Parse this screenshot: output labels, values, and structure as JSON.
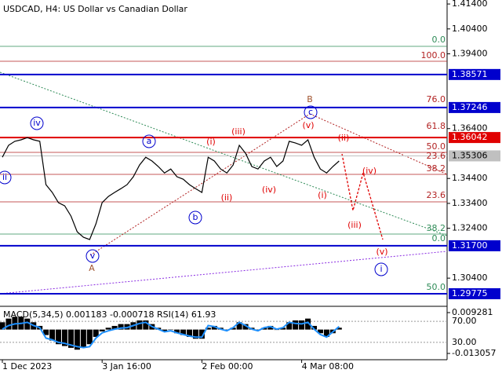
{
  "chart_data": {
    "type": "line",
    "title": "USDCAD, H4:  US Dollar vs Canadian Dollar",
    "color": "#000000",
    "categories": [
      "1 Dec 2023",
      null,
      null,
      null,
      null,
      null,
      null,
      null,
      null,
      null,
      null,
      null,
      null,
      null,
      null,
      null,
      "3 Jan 16:00",
      null,
      null,
      null,
      null,
      null,
      null,
      null,
      null,
      null,
      null,
      null,
      null,
      null,
      null,
      null,
      "2 Feb 00:00",
      null,
      null,
      null,
      null,
      null,
      null,
      null,
      null,
      null,
      null,
      null,
      null,
      null,
      null,
      null,
      "4 Mar 08:00",
      null,
      null,
      null,
      null,
      null,
      null
    ],
    "values": [
      1.3525,
      1.3573,
      1.3589,
      1.3595,
      1.3604,
      1.3595,
      1.3589,
      1.3415,
      1.3384,
      1.3343,
      1.333,
      1.3289,
      1.3226,
      1.3204,
      1.3195,
      1.3258,
      1.3343,
      1.3368,
      1.3384,
      1.3399,
      1.3415,
      1.3447,
      1.3494,
      1.3525,
      1.351,
      1.3488,
      1.3462,
      1.3478,
      1.3447,
      1.3437,
      1.3415,
      1.3399,
      1.3384,
      1.3525,
      1.351,
      1.3478,
      1.3462,
      1.3494,
      1.3573,
      1.3541,
      1.3488,
      1.3478,
      1.351,
      1.3525,
      1.3488,
      1.351,
      1.3589,
      1.3582,
      1.3573,
      1.3595,
      1.3525,
      1.3478,
      1.3462,
      1.3488,
      1.351
    ],
    "ylim": [
      1.2927,
      1.4156
    ],
    "yticks": [
      {
        "value": 1.414,
        "label": "1.41400"
      },
      {
        "value": 1.404,
        "label": "1.40400"
      },
      {
        "value": 1.394,
        "label": "1.39400"
      },
      {
        "value": 1.364,
        "label": "1.36400"
      },
      {
        "value": 1.344,
        "label": "1.34400"
      },
      {
        "value": 1.334,
        "label": "1.33400"
      },
      {
        "value": 1.324,
        "label": "1.32400"
      },
      {
        "value": 1.304,
        "label": "1.30400"
      }
    ],
    "price_levels": [
      {
        "value": 1.38571,
        "label": "1.38571",
        "color": "#0000cd"
      },
      {
        "value": 1.37246,
        "label": "1.37246",
        "color": "#0000cd"
      },
      {
        "value": 1.36042,
        "label": "1.36042",
        "color": "#e00000"
      },
      {
        "value": 1.35306,
        "label": "1.35306",
        "color": "#c0c0c0"
      },
      {
        "value": 1.317,
        "label": "1.31700",
        "color": "#0000cd"
      },
      {
        "value": 1.29775,
        "label": "1.29775",
        "color": "#0000cd"
      }
    ],
    "fib_labels": [
      "0.0",
      "100.0",
      "76.0",
      "61.8",
      "50.0",
      "23.6",
      "38.2",
      "23.6",
      "38.2",
      "0.0",
      "50.0"
    ],
    "wave_labels": [
      "ii",
      "iv",
      "A",
      "v",
      "a",
      "b",
      "(i)",
      "(ii)",
      "(iii)",
      "(iv)",
      "B",
      "c",
      "(v)",
      "(i)",
      "(ii)",
      "(iv)",
      "(iii)",
      "(v)",
      "i"
    ],
    "indicator": {
      "label": "MACD(5,34,5) 0.001183 -0.000718 RSI(14) 61.93",
      "ylim": [
        -0.013057,
        0.009281
      ],
      "yticks": [
        {
          "value": 0.009281,
          "label": "0.009281"
        },
        {
          "value": -0.013057,
          "label": "-0.013057"
        }
      ],
      "rsi_ylim": [
        0,
        100
      ],
      "rsi_yticks": [
        {
          "value": 70,
          "label": "70.00"
        },
        {
          "value": 30,
          "label": "30.00"
        }
      ],
      "histogram": [
        0.004,
        0.006,
        0.007,
        0.007,
        0.006,
        0.004,
        0.002,
        -0.003,
        -0.006,
        -0.008,
        -0.009,
        -0.01,
        -0.011,
        -0.01,
        -0.008,
        -0.004,
        -0.001,
        0.001,
        0.002,
        0.003,
        0.003,
        0.004,
        0.005,
        0.005,
        0.003,
        0.001,
        -0.001,
        0,
        -0.002,
        -0.003,
        -0.004,
        -0.005,
        -0.005,
        0.001,
        0.002,
        0.001,
        0,
        0.001,
        0.004,
        0.003,
        0.001,
        0,
        0.001,
        0.002,
        0,
        0.001,
        0.004,
        0.005,
        0.005,
        0.006,
        0.002,
        -0.002,
        -0.004,
        -0.002,
        0.001
      ],
      "rsi": [
        55,
        62,
        65,
        66,
        68,
        62,
        58,
        38,
        35,
        30,
        28,
        25,
        22,
        20,
        22,
        38,
        48,
        52,
        55,
        57,
        58,
        62,
        66,
        68,
        60,
        55,
        50,
        52,
        48,
        45,
        42,
        40,
        40,
        62,
        60,
        55,
        52,
        58,
        68,
        62,
        55,
        52,
        58,
        60,
        55,
        58,
        68,
        66,
        65,
        68,
        55,
        45,
        40,
        50,
        60
      ],
      "rsi_color": "#1e90ff"
    }
  }
}
